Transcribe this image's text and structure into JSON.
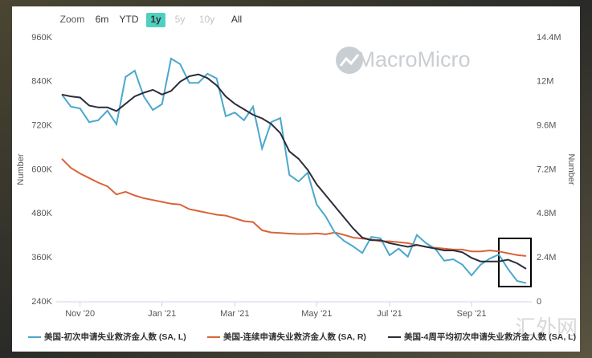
{
  "chart_data": {
    "type": "line",
    "toolbar": {
      "zoom_label": "Zoom",
      "buttons": [
        "6m",
        "YTD",
        "1y",
        "5y",
        "10y",
        "All"
      ],
      "active": "1y",
      "disabled": [
        "5y",
        "10y"
      ]
    },
    "watermark": "MacroMicro",
    "corner_watermark": "汇外网",
    "ylabel": "Number",
    "y2label": "Number",
    "categories": [
      null,
      null,
      "Nov '20",
      null,
      null,
      null,
      null,
      null,
      null,
      null,
      null,
      "Jan '21",
      null,
      null,
      null,
      null,
      null,
      null,
      null,
      "Mar '21",
      null,
      null,
      null,
      null,
      null,
      null,
      null,
      null,
      "May '21",
      null,
      null,
      null,
      null,
      null,
      null,
      null,
      "Jul '21",
      null,
      null,
      null,
      null,
      null,
      null,
      null,
      null,
      "Sep '21",
      null,
      null,
      null,
      null,
      null,
      null
    ],
    "ylim": [
      240000,
      960000
    ],
    "yticks": [
      {
        "value": 240000,
        "label": "240K"
      },
      {
        "value": 360000,
        "label": "360K"
      },
      {
        "value": 480000,
        "label": "480K"
      },
      {
        "value": 600000,
        "label": "600K"
      },
      {
        "value": 720000,
        "label": "720K"
      },
      {
        "value": 840000,
        "label": "840K"
      },
      {
        "value": 960000,
        "label": "960K"
      }
    ],
    "y2lim": [
      0,
      14400000
    ],
    "y2ticks": [
      0,
      {
        "value": 2400000,
        "label": "2.4M"
      },
      {
        "value": 4800000,
        "label": "4.8M"
      },
      {
        "value": 7200000,
        "label": "7.2M"
      },
      {
        "value": 9600000,
        "label": "9.6M"
      },
      {
        "value": 12000000,
        "label": "12M"
      },
      {
        "value": 14400000,
        "label": "14.4M"
      }
    ],
    "series": [
      {
        "name": "美国-初次申请失业救济金人数 (SA, L)",
        "color": "#4aa8cc",
        "values": [
          805000,
          772000,
          767000,
          730000,
          735000,
          761000,
          724000,
          853000,
          870000,
          800000,
          763000,
          779000,
          903000,
          888000,
          837000,
          837000,
          862000,
          849000,
          746000,
          756000,
          735000,
          772000,
          658000,
          730000,
          741000,
          586000,
          568000,
          592000,
          505000,
          472000,
          428000,
          406000,
          391000,
          373000,
          417000,
          413000,
          367000,
          385000,
          363000,
          422000,
          400000,
          385000,
          352000,
          356000,
          341000,
          312000,
          341000,
          358000,
          369000,
          330000,
          297000,
          291000
        ]
      },
      {
        "name": "美国-连续申请失业救济金人数 (SA, R)",
        "color": "#d9643a",
        "axis": "y2",
        "values": [
          7800000,
          7300000,
          7000000,
          6750000,
          6500000,
          6300000,
          5850000,
          6000000,
          5800000,
          5650000,
          5550000,
          5450000,
          5350000,
          5300000,
          5050000,
          4950000,
          4850000,
          4750000,
          4700000,
          4550000,
          4400000,
          4350000,
          3900000,
          3780000,
          3750000,
          3720000,
          3700000,
          3700000,
          3730000,
          3680000,
          3780000,
          3650000,
          3500000,
          3450000,
          3400000,
          3300000,
          3300000,
          3250000,
          3200000,
          3100000,
          3000000,
          2950000,
          2900000,
          2850000,
          2850000,
          2750000,
          2750000,
          2800000,
          2750000,
          2650000,
          2550000,
          2500000
        ]
      },
      {
        "name": "美国-4周平均初次申请失业救济金人数 (SA, L)",
        "color": "#2b2d3a",
        "values": [
          805000,
          800000,
          797000,
          775000,
          770000,
          770000,
          760000,
          780000,
          800000,
          810000,
          818000,
          805000,
          815000,
          840000,
          855000,
          860000,
          850000,
          830000,
          800000,
          780000,
          765000,
          750000,
          740000,
          725000,
          700000,
          650000,
          630000,
          600000,
          560000,
          530000,
          500000,
          470000,
          440000,
          415000,
          408000,
          408000,
          400000,
          395000,
          390000,
          395000,
          390000,
          385000,
          380000,
          380000,
          375000,
          360000,
          350000,
          350000,
          350000,
          355000,
          345000,
          330000
        ]
      }
    ]
  }
}
